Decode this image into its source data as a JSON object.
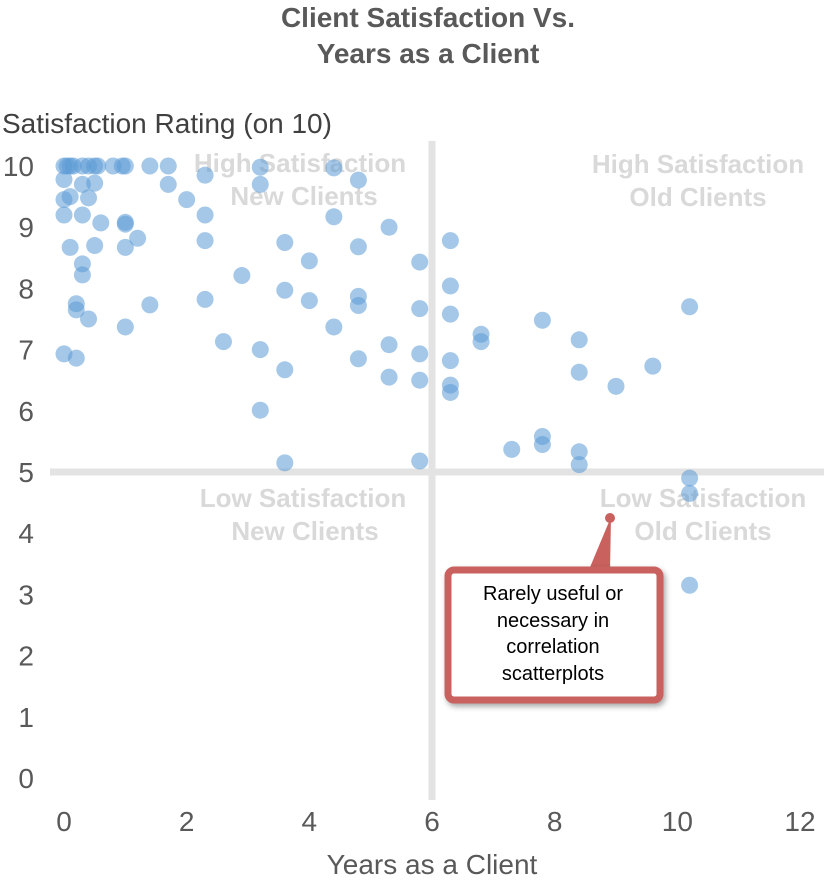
{
  "chart_data": {
    "type": "scatter",
    "title": [
      "Client Satisfaction Vs.",
      "Years as a Client"
    ],
    "xlabel": "Years as a Client",
    "ylabel": "Satisfaction Rating (on 10)",
    "xlim": [
      0,
      12
    ],
    "ylim": [
      0,
      10
    ],
    "x_ticks": [
      "0",
      "2",
      "4",
      "6",
      "8",
      "10",
      "12"
    ],
    "y_ticks": [
      "0",
      "1",
      "2",
      "3",
      "4",
      "5",
      "6",
      "7",
      "8",
      "9",
      "10"
    ],
    "grid": false,
    "quadrant_divider": {
      "x": 6,
      "y": 5
    },
    "quadrant_labels": {
      "top_left": [
        "High Satisfaction",
        "New Clients"
      ],
      "top_right": [
        "High Satisfaction",
        "Old Clients"
      ],
      "bottom_left": [
        "Low Satisfaction",
        "New Clients"
      ],
      "bottom_right": [
        "Low Satisfaction",
        "Old Clients"
      ]
    },
    "callout": {
      "lines": [
        "Rarely useful or",
        "necessary in",
        "correlation",
        "scatterplots"
      ],
      "points_to": "bottom-right quadrant label"
    },
    "colors": {
      "points": "#5b9bd5",
      "divider": "#e3e3e3",
      "quadrant_text": "#d9d9d9",
      "callout_border": "#c9625f"
    },
    "points": [
      {
        "x": 0,
        "y": 10
      },
      {
        "x": 0.05,
        "y": 10
      },
      {
        "x": 0.1,
        "y": 10
      },
      {
        "x": 0.15,
        "y": 10
      },
      {
        "x": 0.3,
        "y": 10
      },
      {
        "x": 0.4,
        "y": 10
      },
      {
        "x": 0.5,
        "y": 10
      },
      {
        "x": 0.55,
        "y": 10
      },
      {
        "x": 0.8,
        "y": 10
      },
      {
        "x": 0.95,
        "y": 10
      },
      {
        "x": 1.0,
        "y": 10
      },
      {
        "x": 1.4,
        "y": 10
      },
      {
        "x": 1.7,
        "y": 10
      },
      {
        "x": 0,
        "y": 9.78
      },
      {
        "x": 0.3,
        "y": 9.7
      },
      {
        "x": 0.5,
        "y": 9.72
      },
      {
        "x": 1.7,
        "y": 9.7
      },
      {
        "x": 2.3,
        "y": 9.85
      },
      {
        "x": 3.2,
        "y": 9.98
      },
      {
        "x": 3.2,
        "y": 9.7
      },
      {
        "x": 4.4,
        "y": 9.97
      },
      {
        "x": 4.8,
        "y": 9.77
      },
      {
        "x": 0,
        "y": 9.45
      },
      {
        "x": 0.1,
        "y": 9.5
      },
      {
        "x": 0.4,
        "y": 9.48
      },
      {
        "x": 2.0,
        "y": 9.45
      },
      {
        "x": 0,
        "y": 9.2
      },
      {
        "x": 0.3,
        "y": 9.2
      },
      {
        "x": 0.6,
        "y": 9.07
      },
      {
        "x": 1.0,
        "y": 9.08
      },
      {
        "x": 1.0,
        "y": 9.05
      },
      {
        "x": 2.3,
        "y": 9.2
      },
      {
        "x": 4.4,
        "y": 9.17
      },
      {
        "x": 5.3,
        "y": 9.0
      },
      {
        "x": 0.1,
        "y": 8.67
      },
      {
        "x": 0.5,
        "y": 8.7
      },
      {
        "x": 1.0,
        "y": 8.67
      },
      {
        "x": 1.2,
        "y": 8.82
      },
      {
        "x": 2.3,
        "y": 8.78
      },
      {
        "x": 3.6,
        "y": 8.75
      },
      {
        "x": 4.0,
        "y": 8.45
      },
      {
        "x": 4.8,
        "y": 8.68
      },
      {
        "x": 5.8,
        "y": 8.43
      },
      {
        "x": 6.3,
        "y": 8.78
      },
      {
        "x": 0.3,
        "y": 8.4
      },
      {
        "x": 0.3,
        "y": 8.22
      },
      {
        "x": 2.9,
        "y": 8.21
      },
      {
        "x": 6.3,
        "y": 8.04
      },
      {
        "x": 0.2,
        "y": 7.75
      },
      {
        "x": 0.2,
        "y": 7.65
      },
      {
        "x": 0.4,
        "y": 7.5
      },
      {
        "x": 1.4,
        "y": 7.73
      },
      {
        "x": 2.3,
        "y": 7.82
      },
      {
        "x": 3.6,
        "y": 7.97
      },
      {
        "x": 4.0,
        "y": 7.8
      },
      {
        "x": 4.8,
        "y": 7.87
      },
      {
        "x": 4.8,
        "y": 7.72
      },
      {
        "x": 5.8,
        "y": 7.67
      },
      {
        "x": 6.3,
        "y": 7.58
      },
      {
        "x": 7.8,
        "y": 7.48
      },
      {
        "x": 10.2,
        "y": 7.7
      },
      {
        "x": 1.0,
        "y": 7.37
      },
      {
        "x": 4.4,
        "y": 7.37
      },
      {
        "x": 6.8,
        "y": 7.25
      },
      {
        "x": 6.8,
        "y": 7.13
      },
      {
        "x": 8.4,
        "y": 7.16
      },
      {
        "x": 2.6,
        "y": 7.13
      },
      {
        "x": 3.2,
        "y": 7.0
      },
      {
        "x": 5.3,
        "y": 7.08
      },
      {
        "x": 0,
        "y": 6.93
      },
      {
        "x": 0.2,
        "y": 6.86
      },
      {
        "x": 4.8,
        "y": 6.85
      },
      {
        "x": 5.8,
        "y": 6.93
      },
      {
        "x": 6.3,
        "y": 6.82
      },
      {
        "x": 3.6,
        "y": 6.67
      },
      {
        "x": 9.6,
        "y": 6.73
      },
      {
        "x": 8.4,
        "y": 6.63
      },
      {
        "x": 5.3,
        "y": 6.55
      },
      {
        "x": 5.8,
        "y": 6.5
      },
      {
        "x": 6.3,
        "y": 6.42
      },
      {
        "x": 6.3,
        "y": 6.3
      },
      {
        "x": 9.0,
        "y": 6.4
      },
      {
        "x": 3.2,
        "y": 6.01
      },
      {
        "x": 7.8,
        "y": 5.58
      },
      {
        "x": 7.8,
        "y": 5.45
      },
      {
        "x": 7.3,
        "y": 5.37
      },
      {
        "x": 8.4,
        "y": 5.33
      },
      {
        "x": 8.4,
        "y": 5.12
      },
      {
        "x": 3.6,
        "y": 5.15
      },
      {
        "x": 5.8,
        "y": 5.18
      },
      {
        "x": 10.2,
        "y": 4.9
      },
      {
        "x": 10.2,
        "y": 4.65
      },
      {
        "x": 10.2,
        "y": 3.15
      }
    ]
  }
}
